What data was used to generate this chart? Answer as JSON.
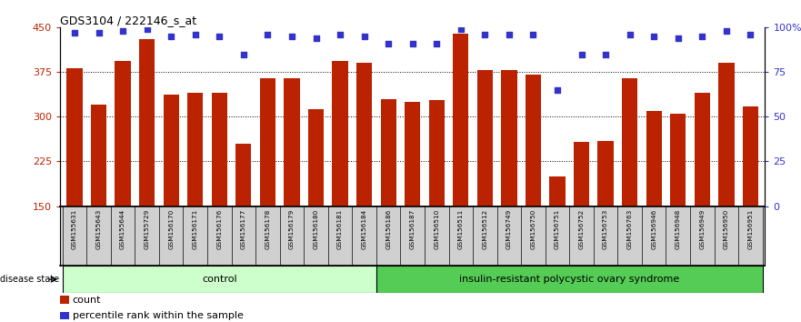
{
  "title": "GDS3104 / 222146_s_at",
  "categories": [
    "GSM155631",
    "GSM155643",
    "GSM155644",
    "GSM155729",
    "GSM156170",
    "GSM156171",
    "GSM156176",
    "GSM156177",
    "GSM156178",
    "GSM156179",
    "GSM156180",
    "GSM156181",
    "GSM156184",
    "GSM156186",
    "GSM156187",
    "GSM156510",
    "GSM156511",
    "GSM156512",
    "GSM156749",
    "GSM156750",
    "GSM156751",
    "GSM156752",
    "GSM156753",
    "GSM156763",
    "GSM156946",
    "GSM156948",
    "GSM156949",
    "GSM156950",
    "GSM156951"
  ],
  "bar_values": [
    381,
    320,
    393,
    430,
    337,
    340,
    340,
    255,
    365,
    365,
    312,
    393,
    391,
    330,
    325,
    328,
    440,
    378,
    378,
    370,
    200,
    258,
    260,
    365,
    310,
    305,
    340,
    390,
    318
  ],
  "percentile_values": [
    97,
    97,
    98,
    99,
    95,
    96,
    95,
    85,
    96,
    95,
    94,
    96,
    95,
    91,
    91,
    91,
    99,
    96,
    96,
    96,
    65,
    85,
    85,
    96,
    95,
    94,
    95,
    98,
    96
  ],
  "n_control": 13,
  "control_label": "control",
  "disease_label": "insulin-resistant polycystic ovary syndrome",
  "disease_state_label": "disease state",
  "bar_color": "#BB2200",
  "percentile_color": "#3333CC",
  "control_bg": "#CCFFCC",
  "disease_bg": "#55CC55",
  "xtick_bg": "#D0D0D0",
  "ymin": 150,
  "ymax": 450,
  "yticks": [
    150,
    225,
    300,
    375,
    450
  ],
  "right_yticks": [
    0,
    25,
    50,
    75,
    100
  ],
  "right_yticklabels": [
    "0",
    "25",
    "50",
    "75",
    "100%"
  ],
  "legend_count_label": "count",
  "legend_percentile_label": "percentile rank within the sample",
  "bar_width": 0.65,
  "background_color": "#FFFFFF"
}
